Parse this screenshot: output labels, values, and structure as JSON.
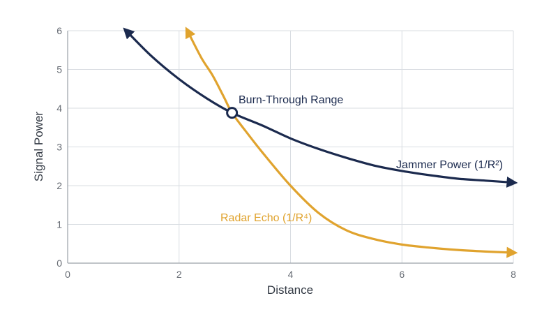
{
  "chart_data": {
    "type": "line",
    "xlabel": "Distance",
    "ylabel": "Signal Power",
    "xlim": [
      0,
      8
    ],
    "ylim": [
      0,
      6
    ],
    "xticks": [
      0,
      2,
      4,
      6,
      8
    ],
    "yticks": [
      0,
      1,
      2,
      3,
      4,
      5,
      6
    ],
    "grid": true,
    "series": [
      {
        "name": "Jammer Power (1/R²)",
        "color": "#1b2a4e",
        "x": [
          1.05,
          1.5,
          2.0,
          2.5,
          2.95,
          3.5,
          4.0,
          4.5,
          5.0,
          5.5,
          6.0,
          6.5,
          7.0,
          7.5,
          8.0
        ],
        "y": [
          6.0,
          5.35,
          4.75,
          4.25,
          3.88,
          3.55,
          3.22,
          2.95,
          2.72,
          2.52,
          2.38,
          2.27,
          2.18,
          2.13,
          2.08
        ]
      },
      {
        "name": "Radar Echo (1/R⁴)",
        "color": "#e0a32e",
        "x": [
          2.15,
          2.4,
          2.6,
          2.8,
          2.95,
          3.2,
          3.5,
          4.0,
          4.5,
          5.0,
          5.5,
          6.0,
          6.5,
          7.0,
          7.5,
          8.0
        ],
        "y": [
          6.0,
          5.3,
          4.85,
          4.3,
          3.88,
          3.4,
          2.85,
          2.0,
          1.3,
          0.85,
          0.62,
          0.48,
          0.4,
          0.34,
          0.3,
          0.27
        ]
      }
    ],
    "annotations": [
      {
        "text": "Burn-Through Range",
        "x": 2.95,
        "y": 3.88
      }
    ]
  },
  "labels": {
    "burn_through": "Burn-Through Range",
    "jammer": "Jammer Power (1/R²)",
    "radar": "Radar Echo (1/R⁴)"
  }
}
